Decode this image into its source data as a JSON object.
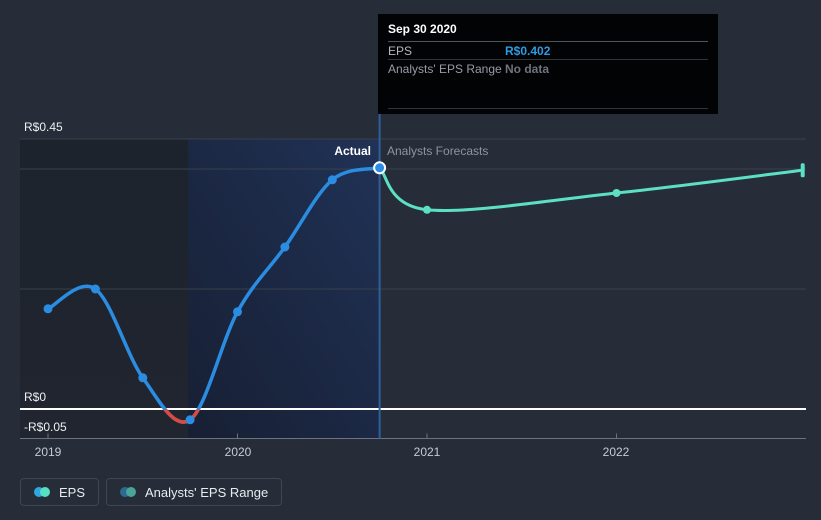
{
  "tooltip": {
    "date": "Sep 30 2020",
    "rows": [
      {
        "label": "EPS",
        "value": "R$0.402",
        "color_key": "value_blue"
      },
      {
        "label": "Analysts' EPS Range",
        "value": "No data",
        "color_key": "no_data_gray"
      }
    ]
  },
  "annotations": {
    "actual_label": "Actual",
    "forecast_label": "Analysts Forecasts"
  },
  "y_axis": {
    "labels": [
      {
        "text": "R$0.45",
        "value": 0.45
      },
      {
        "text": "R$0",
        "value": 0
      },
      {
        "text": "-R$0.05",
        "value": -0.05
      }
    ]
  },
  "x_axis": {
    "labels": [
      "2019",
      "2020",
      "2021",
      "2022"
    ]
  },
  "legend": {
    "items": [
      {
        "label": "EPS",
        "dot_a": "eps_dot_a",
        "dot_b": "eps_dot_b"
      },
      {
        "label": "Analysts' EPS Range",
        "dot_a": "range_dot_a",
        "dot_b": "range_dot_b"
      }
    ]
  },
  "colors": {
    "eps_line": "#2b8de2",
    "eps_negative": "#da4a41",
    "forecast_line": "#5ce0c3",
    "divider_line": "#2e5f9c",
    "zero_line": "#ffffff",
    "gridline": "#39404b",
    "axis_line": "#6b7380",
    "tick": "#6b7380",
    "value_blue": "#2f9be4",
    "no_data_gray": "#6d747d",
    "band_top": "#203256",
    "band_bottom": "#171f33",
    "eps_dot_a": "#2ea7e0",
    "eps_dot_b": "#57dfc4",
    "range_dot_a": "#2d6a8f",
    "range_dot_b": "#4aa498",
    "highlight_ring": "#ffffff"
  },
  "chart_data": {
    "type": "line",
    "title": "EPS — past results and analysts forecasts",
    "currency": "R$",
    "x_ticks": [
      2019,
      2020,
      2021,
      2022
    ],
    "xlim": [
      2018.85,
      2023.02
    ],
    "ylim": [
      -0.05,
      0.45
    ],
    "gridline_values": [
      0.45,
      0.4,
      0.2
    ],
    "zero_gridline": 0,
    "y_labeled_values": [
      0.45,
      0,
      -0.05
    ],
    "divider_x": 2020.75,
    "band_x": [
      2019.74,
      2020.75
    ],
    "series": [
      {
        "name": "EPS",
        "role": "actual",
        "points": [
          [
            2019.0,
            0.167
          ],
          [
            2019.25,
            0.2
          ],
          [
            2019.5,
            0.052
          ],
          [
            2019.75,
            -0.018
          ],
          [
            2020.0,
            0.162
          ],
          [
            2020.25,
            0.27
          ],
          [
            2020.5,
            0.382
          ],
          [
            2020.75,
            0.402
          ]
        ]
      },
      {
        "name": "EPS forecast",
        "role": "forecast",
        "points": [
          [
            2020.75,
            0.402
          ],
          [
            2021.0,
            0.332
          ],
          [
            2022.0,
            0.36
          ],
          [
            2022.98,
            0.398
          ]
        ]
      }
    ],
    "highlight_point": {
      "x": 2020.75,
      "y": 0.402,
      "date": "Sep 30 2020"
    },
    "legend_position": "bottom-left",
    "grid": true
  }
}
